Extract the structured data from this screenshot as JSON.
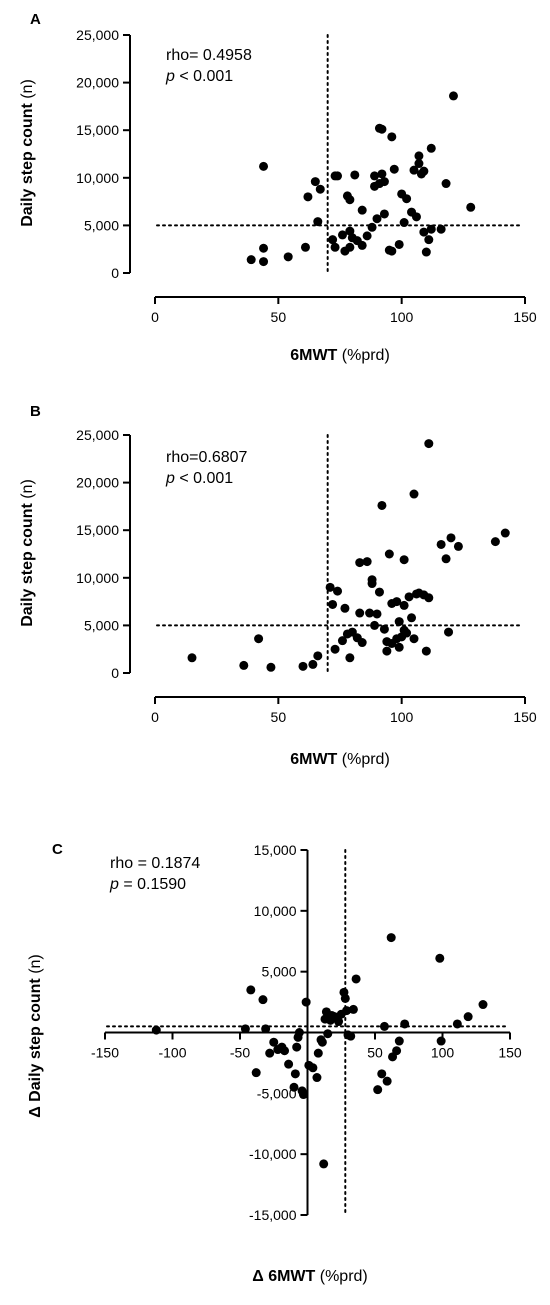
{
  "chart_data": [
    {
      "type": "scatter",
      "panel_label": "A",
      "xlabel_bold": "6MWT",
      "xlabel_rest": " (%prd)",
      "ylabel_bold": "Daily step count",
      "ylabel_rest": " (n)",
      "xlim": [
        0,
        150
      ],
      "ylim": [
        0,
        25000
      ],
      "xticks": [
        0,
        50,
        100,
        150
      ],
      "yticks": [
        0,
        5000,
        10000,
        15000,
        20000,
        25000
      ],
      "x_tick_labels": [
        "0",
        "50",
        "100",
        "150"
      ],
      "y_tick_labels": [
        "0",
        "5,000",
        "10,000",
        "15,000",
        "20,000",
        "25,000"
      ],
      "annotation_line1": "rho= 0.4958",
      "annotation_p": "p",
      "annotation_rest": " < 0.001",
      "ref_x": 70,
      "ref_y": 5000,
      "grid": false,
      "points": [
        [
          39,
          1400
        ],
        [
          44,
          1200
        ],
        [
          44,
          2600
        ],
        [
          44,
          11200
        ],
        [
          54,
          1700
        ],
        [
          61,
          2700
        ],
        [
          62,
          8000
        ],
        [
          65,
          9600
        ],
        [
          66,
          5400
        ],
        [
          67,
          8800
        ],
        [
          72,
          3500
        ],
        [
          73,
          2700
        ],
        [
          73,
          10200
        ],
        [
          74,
          10200
        ],
        [
          76,
          4000
        ],
        [
          77,
          2300
        ],
        [
          78,
          8100
        ],
        [
          79,
          2700
        ],
        [
          79,
          4400
        ],
        [
          79,
          7700
        ],
        [
          80,
          3700
        ],
        [
          81,
          10300
        ],
        [
          82,
          3400
        ],
        [
          84,
          2900
        ],
        [
          84,
          6600
        ],
        [
          86,
          3900
        ],
        [
          88,
          4800
        ],
        [
          89,
          9100
        ],
        [
          89,
          10200
        ],
        [
          90,
          5700
        ],
        [
          91,
          9400
        ],
        [
          91,
          15200
        ],
        [
          92,
          10400
        ],
        [
          92,
          15100
        ],
        [
          93,
          6200
        ],
        [
          93,
          9600
        ],
        [
          95,
          2400
        ],
        [
          96,
          2300
        ],
        [
          96,
          14300
        ],
        [
          97,
          10900
        ],
        [
          99,
          3000
        ],
        [
          100,
          8300
        ],
        [
          101,
          5300
        ],
        [
          102,
          7800
        ],
        [
          104,
          6400
        ],
        [
          105,
          10800
        ],
        [
          106,
          5900
        ],
        [
          107,
          11500
        ],
        [
          107,
          12300
        ],
        [
          108,
          10400
        ],
        [
          109,
          4300
        ],
        [
          109,
          10700
        ],
        [
          110,
          2200
        ],
        [
          111,
          3500
        ],
        [
          112,
          4600
        ],
        [
          112,
          13100
        ],
        [
          116,
          4600
        ],
        [
          118,
          9400
        ],
        [
          121,
          18600
        ],
        [
          128,
          6900
        ]
      ]
    },
    {
      "type": "scatter",
      "panel_label": "B",
      "xlabel_bold": "6MWT",
      "xlabel_rest": " (%prd)",
      "ylabel_bold": "Daily step count",
      "ylabel_rest": " (n)",
      "xlim": [
        0,
        150
      ],
      "ylim": [
        0,
        25000
      ],
      "xticks": [
        0,
        50,
        100,
        150
      ],
      "yticks": [
        0,
        5000,
        10000,
        15000,
        20000,
        25000
      ],
      "x_tick_labels": [
        "0",
        "50",
        "100",
        "150"
      ],
      "y_tick_labels": [
        "0",
        "5,000",
        "10,000",
        "15,000",
        "20,000",
        "25,000"
      ],
      "annotation_line1": "rho=0.6807",
      "annotation_p": "p",
      "annotation_rest": " < 0.001",
      "ref_x": 70,
      "ref_y": 5000,
      "grid": false,
      "points": [
        [
          15,
          1600
        ],
        [
          36,
          800
        ],
        [
          42,
          3600
        ],
        [
          47,
          600
        ],
        [
          60,
          700
        ],
        [
          64,
          900
        ],
        [
          66,
          1800
        ],
        [
          71,
          9000
        ],
        [
          72,
          7200
        ],
        [
          73,
          2500
        ],
        [
          74,
          8600
        ],
        [
          76,
          3400
        ],
        [
          77,
          6800
        ],
        [
          78,
          4100
        ],
        [
          79,
          1600
        ],
        [
          80,
          4300
        ],
        [
          82,
          3700
        ],
        [
          83,
          11600
        ],
        [
          83,
          6300
        ],
        [
          84,
          3200
        ],
        [
          86,
          11700
        ],
        [
          87,
          6300
        ],
        [
          88,
          9800
        ],
        [
          88,
          9400
        ],
        [
          89,
          5000
        ],
        [
          90,
          6200
        ],
        [
          91,
          8500
        ],
        [
          92,
          17600
        ],
        [
          93,
          4600
        ],
        [
          94,
          2300
        ],
        [
          94,
          3300
        ],
        [
          95,
          12500
        ],
        [
          96,
          3100
        ],
        [
          96,
          7300
        ],
        [
          98,
          3600
        ],
        [
          98,
          7500
        ],
        [
          99,
          2700
        ],
        [
          99,
          5400
        ],
        [
          100,
          3800
        ],
        [
          101,
          4500
        ],
        [
          101,
          7100
        ],
        [
          101,
          11900
        ],
        [
          102,
          4200
        ],
        [
          103,
          8000
        ],
        [
          104,
          5800
        ],
        [
          105,
          3600
        ],
        [
          105,
          18800
        ],
        [
          106,
          8300
        ],
        [
          107,
          8400
        ],
        [
          109,
          8200
        ],
        [
          110,
          2300
        ],
        [
          111,
          24100
        ],
        [
          111,
          7900
        ],
        [
          116,
          13500
        ],
        [
          118,
          12000
        ],
        [
          119,
          4300
        ],
        [
          120,
          14200
        ],
        [
          123,
          13300
        ],
        [
          138,
          13800
        ],
        [
          142,
          14700
        ]
      ]
    },
    {
      "type": "scatter",
      "panel_label": "C",
      "xlabel_bold": "Δ 6MWT",
      "xlabel_rest": " (%prd)",
      "ylabel_bold": "Δ Daily step count",
      "ylabel_rest": " (n)",
      "xlim": [
        -150,
        150
      ],
      "ylim": [
        -15000,
        15000
      ],
      "xticks": [
        -150,
        -100,
        -50,
        0,
        50,
        100,
        150
      ],
      "yticks": [
        -15000,
        -10000,
        -5000,
        0,
        5000,
        10000,
        15000
      ],
      "x_tick_labels": [
        "-150",
        "-100",
        "-50",
        "0",
        "50",
        "100",
        "150"
      ],
      "y_tick_labels": [
        "-15,000",
        "-10,000",
        "-5,000",
        "0",
        "5,000",
        "10,000",
        "15,000"
      ],
      "annotation_line1": "rho = 0.1874",
      "annotation_p": "p",
      "annotation_rest": " = 0.1590",
      "ref_x": 28,
      "ref_y": 500,
      "grid": false,
      "points": [
        [
          -112,
          200
        ],
        [
          -46,
          300
        ],
        [
          -42,
          3500
        ],
        [
          -38,
          -3300
        ],
        [
          -33,
          2700
        ],
        [
          -31,
          300
        ],
        [
          -28,
          -1700
        ],
        [
          -25,
          -800
        ],
        [
          -22,
          -1400
        ],
        [
          -19,
          -1200
        ],
        [
          -17,
          -1500
        ],
        [
          -14,
          -2600
        ],
        [
          -10,
          -4500
        ],
        [
          -9,
          -3400
        ],
        [
          -8,
          -1200
        ],
        [
          -7,
          -400
        ],
        [
          -6,
          0
        ],
        [
          -4,
          -4800
        ],
        [
          -3,
          -5100
        ],
        [
          -1,
          2500
        ],
        [
          1,
          -2700
        ],
        [
          4,
          -2900
        ],
        [
          7,
          -3700
        ],
        [
          8,
          -1700
        ],
        [
          10,
          -600
        ],
        [
          11,
          -800
        ],
        [
          12,
          -10800
        ],
        [
          13,
          1100
        ],
        [
          14,
          1700
        ],
        [
          15,
          -100
        ],
        [
          17,
          1000
        ],
        [
          18,
          1400
        ],
        [
          20,
          1300
        ],
        [
          23,
          900
        ],
        [
          25,
          1500
        ],
        [
          27,
          3300
        ],
        [
          28,
          2800
        ],
        [
          29,
          1800
        ],
        [
          30,
          -200
        ],
        [
          32,
          -300
        ],
        [
          34,
          1900
        ],
        [
          36,
          4400
        ],
        [
          52,
          -4700
        ],
        [
          55,
          -3400
        ],
        [
          57,
          500
        ],
        [
          59,
          -4000
        ],
        [
          62,
          7800
        ],
        [
          63,
          -2000
        ],
        [
          66,
          -1500
        ],
        [
          68,
          -700
        ],
        [
          72,
          700
        ],
        [
          98,
          6100
        ],
        [
          99,
          -700
        ],
        [
          111,
          700
        ],
        [
          119,
          1300
        ],
        [
          130,
          2300
        ]
      ]
    }
  ]
}
